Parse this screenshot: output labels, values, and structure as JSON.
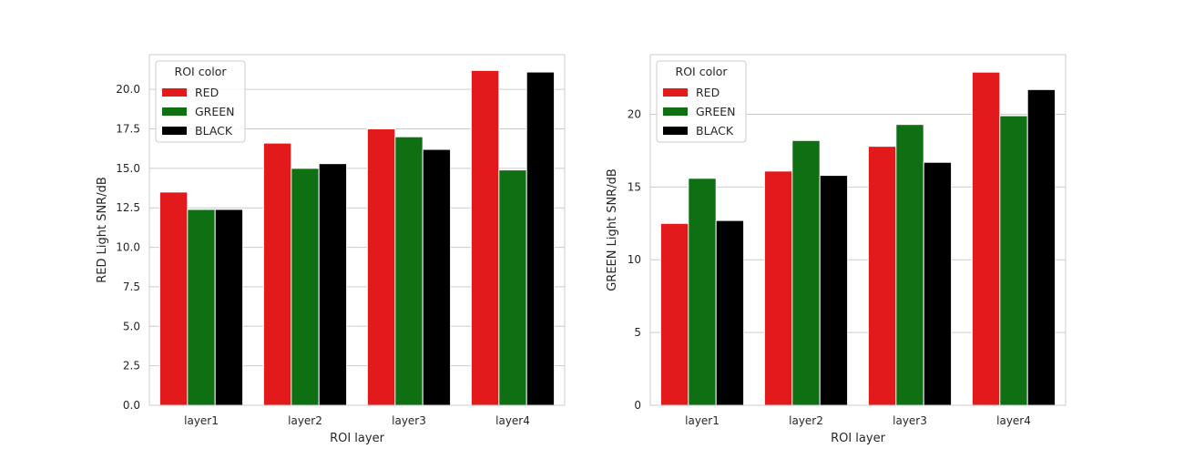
{
  "colors": {
    "RED": "#e31a1c",
    "GREEN": "#0e7012",
    "BLACK": "#000000",
    "grid": "#cccccc",
    "spine": "#cccccc"
  },
  "chart_data": [
    {
      "type": "bar",
      "categories": [
        "layer1",
        "layer2",
        "layer3",
        "layer4"
      ],
      "series": [
        {
          "name": "RED",
          "values": [
            13.5,
            16.6,
            17.5,
            21.2
          ]
        },
        {
          "name": "GREEN",
          "values": [
            12.4,
            15.0,
            17.0,
            14.9
          ]
        },
        {
          "name": "BLACK",
          "values": [
            12.4,
            15.3,
            16.2,
            21.1
          ]
        }
      ],
      "title": "",
      "xlabel": "ROI layer",
      "ylabel": "RED Light SNR/dB",
      "ylim": [
        0,
        22.2
      ],
      "yticks": [
        "0.0",
        "2.5",
        "5.0",
        "7.5",
        "10.0",
        "12.5",
        "15.0",
        "17.5",
        "20.0"
      ],
      "grid": "y",
      "legend": {
        "title": "ROI color",
        "position": "top-left"
      }
    },
    {
      "type": "bar",
      "categories": [
        "layer1",
        "layer2",
        "layer3",
        "layer4"
      ],
      "series": [
        {
          "name": "RED",
          "values": [
            12.5,
            16.1,
            17.8,
            22.9
          ]
        },
        {
          "name": "GREEN",
          "values": [
            15.6,
            18.2,
            19.3,
            19.9
          ]
        },
        {
          "name": "BLACK",
          "values": [
            12.7,
            15.8,
            16.7,
            21.7
          ]
        }
      ],
      "title": "",
      "xlabel": "ROI layer",
      "ylabel": "GREEN Light SNR/dB",
      "ylim": [
        0,
        24.1
      ],
      "yticks": [
        "0",
        "5",
        "10",
        "15",
        "20"
      ],
      "grid": "y",
      "legend": {
        "title": "ROI color",
        "position": "top-left"
      }
    }
  ]
}
